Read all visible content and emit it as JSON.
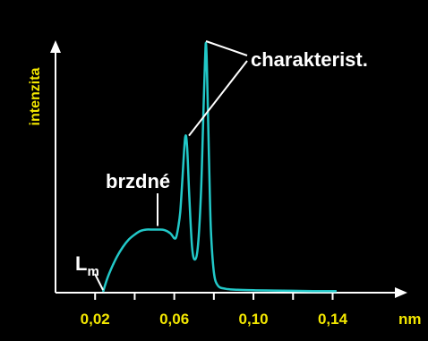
{
  "chart_data": {
    "type": "line",
    "title": "",
    "ylabel": "intenzita",
    "xunit": "nm",
    "xlim": [
      0.0,
      0.16
    ],
    "ylim": [
      0,
      1
    ],
    "xticks": [
      {
        "value": 0.02,
        "label": "0,02"
      },
      {
        "value": 0.06,
        "label": "0,06"
      },
      {
        "value": 0.1,
        "label": "0,10"
      },
      {
        "value": 0.14,
        "label": "0,14"
      }
    ],
    "grid": false,
    "series": [
      {
        "color": "#22c8c8",
        "x": [
          0.024,
          0.026,
          0.028,
          0.031,
          0.034,
          0.037,
          0.04,
          0.043,
          0.046,
          0.049,
          0.052,
          0.055,
          0.058,
          0.06,
          0.061,
          0.062,
          0.063,
          0.064,
          0.0655,
          0.0665,
          0.0675,
          0.069,
          0.0705,
          0.072,
          0.0735,
          0.0745,
          0.0755,
          0.076,
          0.0765,
          0.0775,
          0.0785,
          0.08,
          0.082,
          0.086,
          0.092,
          0.1,
          0.11,
          0.12,
          0.13,
          0.142
        ],
        "y": [
          0.0,
          0.05,
          0.09,
          0.14,
          0.18,
          0.21,
          0.23,
          0.245,
          0.25,
          0.25,
          0.25,
          0.248,
          0.235,
          0.215,
          0.22,
          0.26,
          0.32,
          0.44,
          0.62,
          0.58,
          0.4,
          0.18,
          0.13,
          0.19,
          0.4,
          0.66,
          0.92,
          1.0,
          0.9,
          0.55,
          0.25,
          0.08,
          0.025,
          0.012,
          0.008,
          0.006,
          0.005,
          0.004,
          0.003,
          0.003
        ]
      }
    ],
    "annotations": [
      {
        "text": "charakterist.",
        "targets": [
          {
            "x": 0.0665,
            "y": 0.62
          },
          {
            "x": 0.076,
            "y": 1.0
          }
        ]
      },
      {
        "text": "brzdné",
        "targets": [
          {
            "x": 0.049,
            "y": 0.25
          }
        ]
      },
      {
        "text": "L",
        "subscript": "m",
        "targets": [
          {
            "x": 0.024,
            "y": 0.0
          }
        ]
      }
    ],
    "colors": {
      "background": "#000000",
      "axis": "#ffffff",
      "labels": "#f2e600",
      "curve": "#22c8c8",
      "annotations": "#ffffff"
    }
  }
}
